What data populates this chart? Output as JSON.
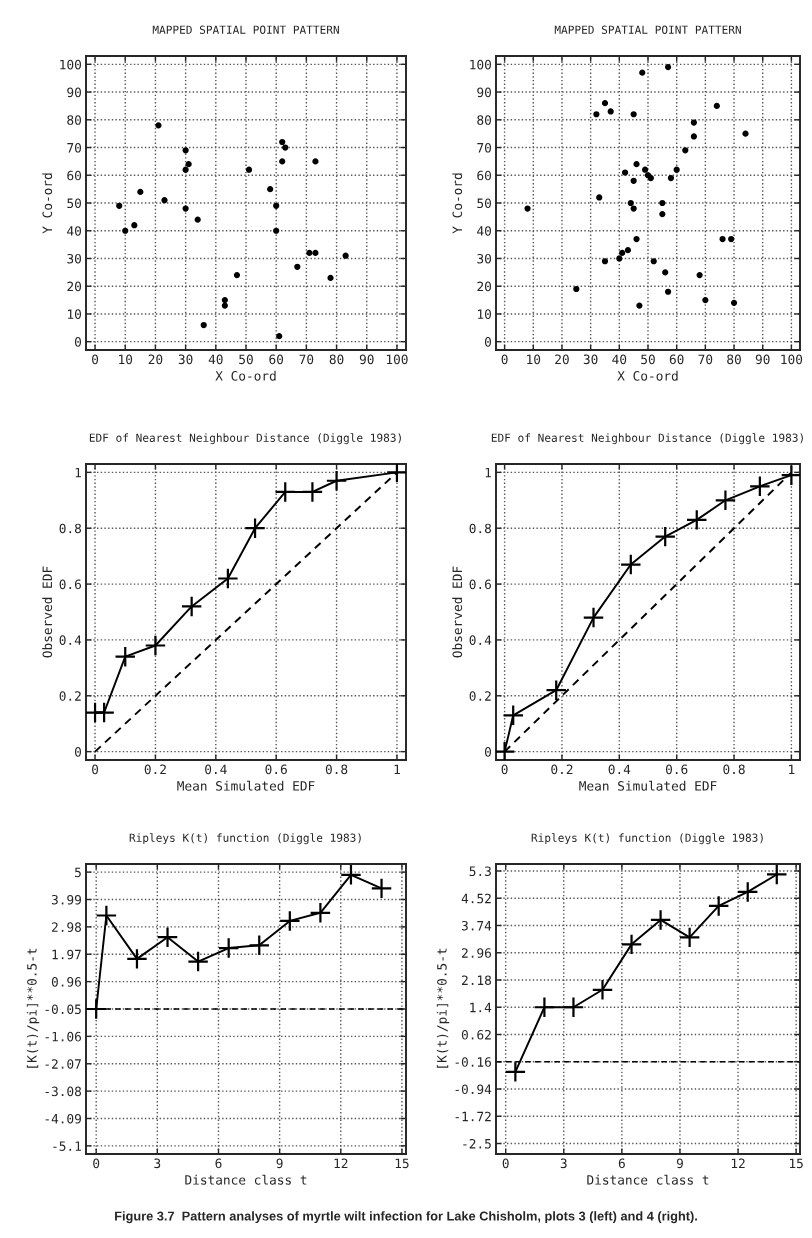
{
  "chart_data": [
    {
      "type": "scatter",
      "title": "MAPPED SPATIAL POINT PATTERN",
      "xlabel": "X Co-ord",
      "ylabel": "Y Co-ord",
      "xlim": [
        -3,
        103
      ],
      "ylim": [
        -3,
        103
      ],
      "xticks": [
        0,
        10,
        20,
        30,
        40,
        50,
        60,
        70,
        80,
        90,
        100
      ],
      "yticks": [
        0,
        10,
        20,
        30,
        40,
        50,
        60,
        70,
        80,
        90,
        100
      ],
      "grid": true,
      "marker": "circle",
      "series": [
        {
          "color": "#000000",
          "x": [
            15,
            8,
            13,
            10,
            21,
            23,
            31,
            30,
            30,
            30,
            34,
            36,
            43,
            43,
            47,
            51,
            58,
            60,
            60,
            62,
            62,
            63,
            61,
            67,
            71,
            73,
            73,
            78,
            83
          ],
          "values": [
            54,
            49,
            42,
            40,
            78,
            51,
            64,
            62,
            69,
            48,
            44,
            6,
            15,
            13,
            24,
            62,
            55,
            49,
            40,
            72,
            65,
            70,
            2,
            27,
            32,
            32,
            65,
            23,
            31
          ]
        }
      ]
    },
    {
      "type": "scatter",
      "title": "MAPPED SPATIAL POINT PATTERN",
      "xlabel": "X Co-ord",
      "ylabel": "Y Co-ord",
      "xlim": [
        -3,
        103
      ],
      "ylim": [
        -3,
        103
      ],
      "xticks": [
        0,
        10,
        20,
        30,
        40,
        50,
        60,
        70,
        80,
        90,
        100
      ],
      "yticks": [
        0,
        10,
        20,
        30,
        40,
        50,
        60,
        70,
        80,
        90,
        100
      ],
      "grid": true,
      "marker": "circle",
      "series": [
        {
          "color": "#000000",
          "x": [
            8,
            25,
            32,
            33,
            35,
            35,
            37,
            40,
            41,
            42,
            43,
            44,
            45,
            45,
            45,
            46,
            46,
            47,
            48,
            49,
            50,
            51,
            52,
            55,
            55,
            56,
            57,
            57,
            58,
            60,
            63,
            66,
            66,
            68,
            70,
            74,
            76,
            79,
            80,
            84
          ],
          "values": [
            48,
            19,
            82,
            52,
            86,
            29,
            83,
            30,
            32,
            61,
            33,
            50,
            48,
            82,
            58,
            37,
            64,
            13,
            97,
            62,
            60,
            59,
            29,
            50,
            46,
            25,
            18,
            99,
            59,
            62,
            69,
            79,
            74,
            24,
            15,
            85,
            37,
            37,
            14,
            75
          ]
        }
      ]
    },
    {
      "type": "line",
      "title": "EDF of Nearest Neighbour Distance (Diggle 1983)",
      "xlabel": "Mean Simulated EDF",
      "ylabel": "Observed EDF",
      "xlim": [
        -0.03,
        1.03
      ],
      "ylim": [
        -0.03,
        1.03
      ],
      "xticks": [
        0,
        0.2,
        0.4,
        0.6,
        0.8,
        1
      ],
      "yticks": [
        0,
        0.2,
        0.4,
        0.6,
        0.8,
        1
      ],
      "grid": true,
      "series": [
        {
          "color": "#000000",
          "marker": "cross",
          "line_style": "solid",
          "x": [
            0,
            0.03,
            0.1,
            0.2,
            0.32,
            0.44,
            0.53,
            0.63,
            0.72,
            0.8,
            1
          ],
          "values": [
            0.14,
            0.14,
            0.34,
            0.38,
            0.52,
            0.62,
            0.8,
            0.93,
            0.93,
            0.97,
            1
          ]
        },
        {
          "color": "#000000",
          "marker": "none",
          "line_style": "dashed",
          "x": [
            0,
            1
          ],
          "values": [
            0,
            1
          ]
        }
      ]
    },
    {
      "type": "line",
      "title": "EDF of Nearest Neighbour Distance (Diggle 1983)",
      "xlabel": "Mean Simulated EDF",
      "ylabel": "Observed EDF",
      "xlim": [
        -0.03,
        1.03
      ],
      "ylim": [
        -0.03,
        1.03
      ],
      "xticks": [
        0,
        0.2,
        0.4,
        0.6,
        0.8,
        1
      ],
      "yticks": [
        0,
        0.2,
        0.4,
        0.6,
        0.8,
        1
      ],
      "grid": true,
      "series": [
        {
          "color": "#000000",
          "marker": "cross",
          "line_style": "solid",
          "x": [
            0,
            0.03,
            0.18,
            0.31,
            0.44,
            0.56,
            0.67,
            0.77,
            0.89,
            1
          ],
          "values": [
            0,
            0.13,
            0.22,
            0.48,
            0.67,
            0.77,
            0.83,
            0.9,
            0.95,
            0.99
          ]
        },
        {
          "color": "#000000",
          "marker": "none",
          "line_style": "dashed",
          "x": [
            0,
            1
          ],
          "values": [
            0,
            1
          ]
        }
      ]
    },
    {
      "type": "line",
      "title": "Ripleys K(t) function (Diggle 1983)",
      "xlabel": "Distance class t",
      "ylabel": "[K(t)/pi]**0.5-t",
      "xlim": [
        -0.5,
        15.2
      ],
      "ylim": [
        -5.4,
        5.3
      ],
      "xticks": [
        0,
        3,
        6,
        9,
        12,
        15
      ],
      "yticks": [
        5,
        3.99,
        2.98,
        1.97,
        0.96,
        -0.05,
        -1.06,
        -2.07,
        -3.08,
        -4.09,
        -5.1
      ],
      "grid": true,
      "ref_lines": [
        {
          "axis": "y",
          "value": -0.05,
          "line_style": "dashed",
          "color": "#000000"
        }
      ],
      "series": [
        {
          "color": "#000000",
          "marker": "cross",
          "line_style": "solid",
          "x": [
            0,
            0.5,
            2,
            3.5,
            5,
            6.5,
            8,
            9.5,
            11,
            12.5,
            14
          ],
          "values": [
            -0.05,
            3.4,
            1.8,
            2.6,
            1.7,
            2.2,
            2.3,
            3.2,
            3.5,
            4.9,
            4.4
          ]
        }
      ]
    },
    {
      "type": "line",
      "title": "Ripleys K(t) function (Diggle 1983)",
      "xlabel": "Distance class t",
      "ylabel": "[K(t)/pi]**0.5-t",
      "xlim": [
        -0.5,
        15.2
      ],
      "ylim": [
        -2.8,
        5.5
      ],
      "xticks": [
        0,
        3,
        6,
        9,
        12,
        15
      ],
      "yticks": [
        5.3,
        4.52,
        3.74,
        2.96,
        2.18,
        1.4,
        0.62,
        -0.16,
        -0.94,
        -1.72,
        -2.5
      ],
      "grid": true,
      "ref_lines": [
        {
          "axis": "y",
          "value": -0.16,
          "line_style": "dashed",
          "color": "#000000"
        }
      ],
      "annotations": [
        "Figure 3.7  Pattern analyses of myrtle wilt infection for Lake Chisholm, plots 3 (left) and 4 (right)."
      ],
      "series": [
        {
          "color": "#000000",
          "marker": "cross",
          "line_style": "solid",
          "x": [
            0.5,
            2,
            3.5,
            5,
            6.5,
            8,
            9.5,
            11,
            12.5,
            14
          ],
          "values": [
            -0.45,
            1.4,
            1.4,
            1.9,
            3.2,
            3.9,
            3.4,
            4.3,
            4.7,
            5.2
          ]
        }
      ]
    }
  ]
}
